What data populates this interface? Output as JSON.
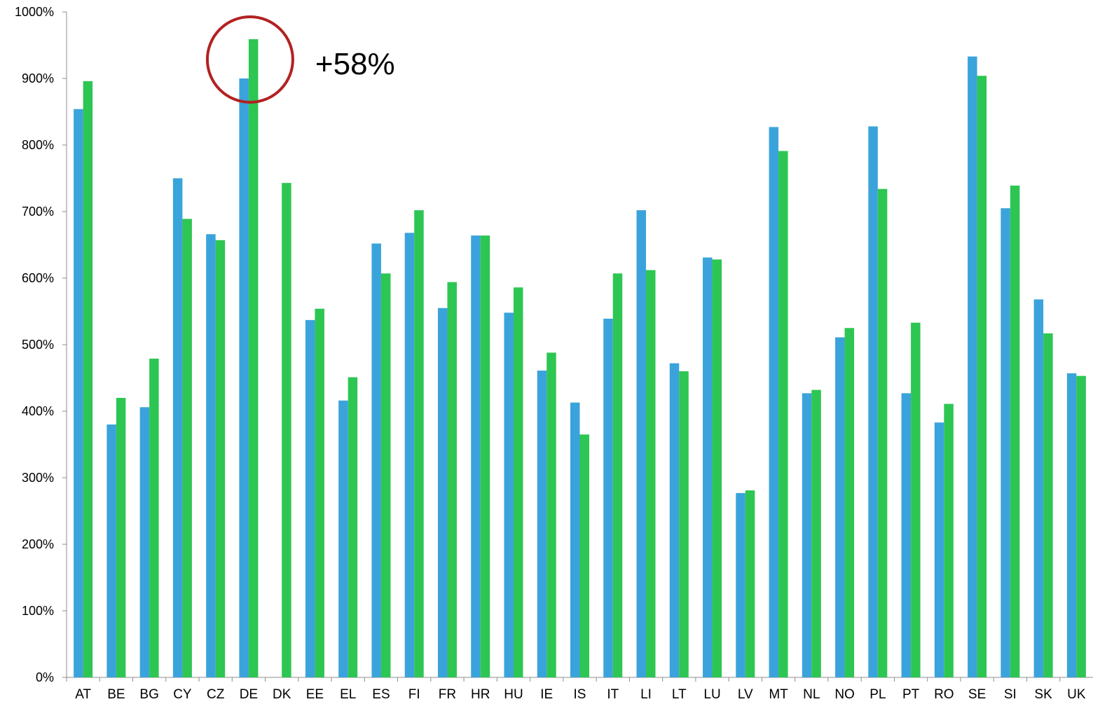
{
  "chart_data": {
    "type": "bar",
    "categories": [
      "AT",
      "BE",
      "BG",
      "CY",
      "CZ",
      "DE",
      "DK",
      "EE",
      "EL",
      "ES",
      "FI",
      "FR",
      "HR",
      "HU",
      "IE",
      "IS",
      "IT",
      "LI",
      "LT",
      "LU",
      "LV",
      "MT",
      "NL",
      "NO",
      "PL",
      "PT",
      "RO",
      "SE",
      "SI",
      "SK",
      "UK"
    ],
    "series": [
      {
        "color": "#3BA3DB",
        "values": [
          854,
          380,
          406,
          750,
          666,
          900,
          null,
          537,
          416,
          652,
          668,
          555,
          664,
          548,
          461,
          413,
          539,
          702,
          472,
          631,
          277,
          827,
          427,
          511,
          828,
          427,
          383,
          933,
          705,
          568,
          457
        ]
      },
      {
        "color": "#2DC653",
        "values": [
          896,
          420,
          479,
          689,
          657,
          959,
          743,
          554,
          451,
          607,
          702,
          594,
          664,
          586,
          488,
          365,
          607,
          612,
          460,
          628,
          281,
          791,
          432,
          525,
          734,
          533,
          411,
          904,
          739,
          517,
          453
        ]
      }
    ],
    "yticks": [
      "0%",
      "100%",
      "200%",
      "300%",
      "400%",
      "500%",
      "600%",
      "700%",
      "800%",
      "900%",
      "1000%"
    ],
    "ylim": [
      0,
      1000
    ],
    "grid": false,
    "legend": "none",
    "annotation": {
      "text": "+58%",
      "target_category": "DE",
      "circle_color": "#B22222"
    }
  }
}
